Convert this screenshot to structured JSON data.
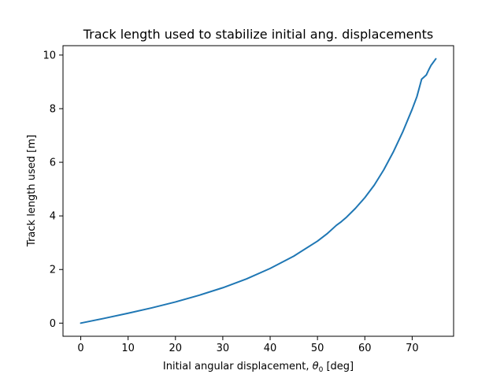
{
  "chart_data": {
    "type": "line",
    "title": "Track length used to stabilize initial ang. displacements",
    "xlabel_prefix": "Initial angular displacement, ",
    "xlabel_symbol": "θ",
    "xlabel_subscript": "0",
    "xlabel_suffix": " [deg]",
    "ylabel": "Track length used [m]",
    "xlim": [
      -3.75,
      78.75
    ],
    "ylim": [
      -0.49,
      10.35
    ],
    "xticks": [
      0,
      10,
      20,
      30,
      40,
      50,
      60,
      70
    ],
    "yticks": [
      0,
      2,
      4,
      6,
      8,
      10
    ],
    "grid": false,
    "line_color": "#1f77b4",
    "series": [
      {
        "x": [
          0,
          5,
          10,
          15,
          20,
          25,
          30,
          35,
          40,
          45,
          50,
          52,
          54,
          55,
          56,
          58,
          60,
          62,
          64,
          66,
          68,
          70,
          71,
          72,
          72.5,
          73,
          73.5,
          74,
          75
        ],
        "y": [
          0,
          0.18,
          0.37,
          0.57,
          0.79,
          1.04,
          1.32,
          1.65,
          2.04,
          2.5,
          3.06,
          3.33,
          3.65,
          3.78,
          3.93,
          4.28,
          4.68,
          5.15,
          5.72,
          6.38,
          7.13,
          7.98,
          8.45,
          9.1,
          9.18,
          9.26,
          9.45,
          9.62,
          9.86
        ]
      }
    ]
  }
}
